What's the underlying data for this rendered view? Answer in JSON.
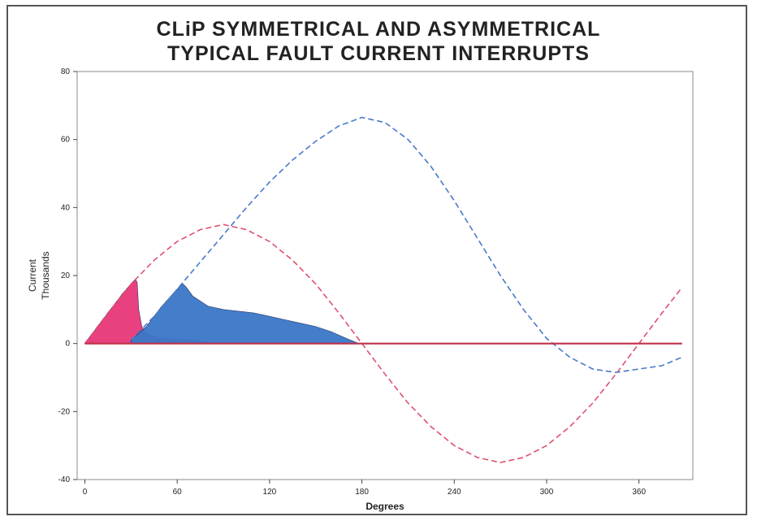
{
  "chart_data": {
    "type": "area",
    "title_line1": "CLiP SYMMETRICAL AND ASYMMETRICAL",
    "title_line2": "TYPICAL FAULT CURRENT INTERRUPTS",
    "xlabel": "Degrees",
    "ylabel_line1": "Current",
    "ylabel_line2": "Thousands",
    "xlim": [
      -5,
      395
    ],
    "ylim": [
      -40,
      80
    ],
    "xticks": [
      0,
      60,
      120,
      180,
      240,
      300,
      360
    ],
    "yticks": [
      -40,
      -20,
      0,
      20,
      40,
      60,
      80
    ],
    "grid": false,
    "colors": {
      "red_line": "#e0506e",
      "blue_line": "#4a7ac8",
      "pink_fill": "#e8377a",
      "blue_fill": "#3a78c8",
      "baseline": "#c0304a"
    },
    "series": [
      {
        "style": "dashed",
        "color": "red_line",
        "x": [
          0,
          15,
          30,
          45,
          60,
          75,
          90,
          105,
          120,
          135,
          150,
          165,
          180,
          195,
          210,
          225,
          240,
          255,
          270,
          285,
          300,
          315,
          330,
          345,
          360,
          375,
          388
        ],
        "y": [
          0,
          9,
          17.5,
          24.5,
          30,
          33.5,
          35,
          33.5,
          30,
          24.5,
          17.5,
          9,
          0,
          -9,
          -17.5,
          -24.5,
          -30,
          -33.5,
          -35,
          -33.5,
          -30,
          -24.5,
          -17.5,
          -9,
          0,
          9,
          16.5
        ]
      },
      {
        "style": "dashed",
        "color": "blue_line",
        "x": [
          30,
          45,
          60,
          75,
          90,
          105,
          120,
          135,
          150,
          165,
          180,
          195,
          210,
          225,
          240,
          255,
          270,
          285,
          300,
          315,
          330,
          345,
          360,
          375,
          388
        ],
        "y": [
          1,
          8,
          16,
          24,
          32,
          40,
          47.5,
          54,
          59.5,
          64,
          66.5,
          65,
          60,
          52,
          42,
          31,
          20,
          10,
          1.5,
          -4,
          -7.5,
          -8.5,
          -7.5,
          -6.5,
          -4
        ]
      },
      {
        "style": "filled",
        "color": "pink_fill",
        "x": [
          0,
          5,
          10,
          15,
          20,
          25,
          30,
          32,
          33,
          34,
          35,
          37,
          40,
          45,
          50,
          60,
          70,
          80,
          85
        ],
        "y": [
          0,
          3,
          6,
          9,
          12,
          15,
          17.5,
          18.5,
          18.8,
          18,
          10,
          5,
          3,
          2,
          1.5,
          1.3,
          1,
          0.5,
          0
        ]
      },
      {
        "style": "filled",
        "color": "blue_fill",
        "x": [
          30,
          40,
          50,
          60,
          62,
          64,
          66,
          70,
          80,
          90,
          100,
          110,
          120,
          130,
          140,
          150,
          160,
          170,
          178
        ],
        "y": [
          1,
          5,
          11,
          16,
          17,
          17.5,
          16.5,
          14,
          11,
          10,
          9.5,
          9,
          8,
          7,
          6,
          5,
          3.5,
          1.5,
          0
        ]
      },
      {
        "style": "solid",
        "color": "baseline",
        "x": [
          0,
          388
        ],
        "y": [
          0,
          0
        ]
      }
    ]
  }
}
